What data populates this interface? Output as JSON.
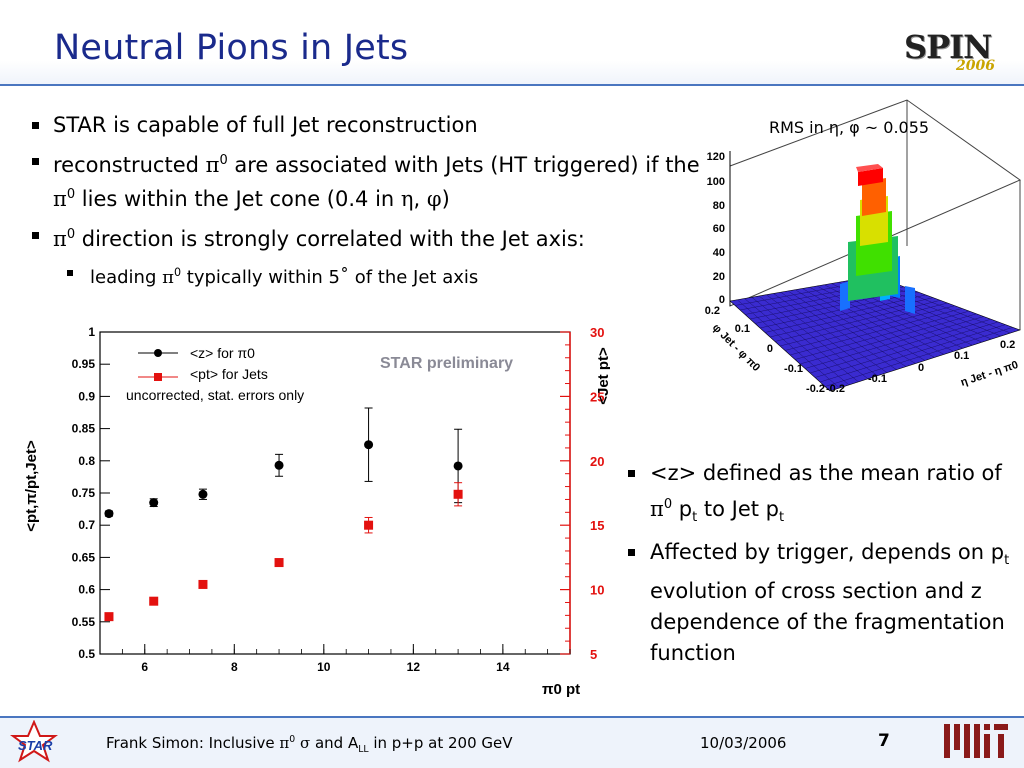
{
  "slide": {
    "title": "Neutral Pions in Jets",
    "logo_main": "SPIN",
    "logo_year": "2006"
  },
  "bullets": {
    "b1": "STAR is capable of full Jet reconstruction",
    "b2_a": "reconstructed ",
    "pi": "π",
    "zero": "0",
    "b2_b": " are associated with Jets (HT triggered) if the ",
    "b2_c": " lies within the Jet cone (0.4 in ",
    "eta": "η",
    "comma": ", ",
    "phi": "φ",
    "close": ")",
    "b3_b": " direction is strongly correlated with the Jet axis:",
    "sub_a": "leading ",
    "sub_b": " typically within 5˚   of the Jet axis"
  },
  "lego": {
    "rms_label": "RMS in η, φ ~ 0.055",
    "zticks": [
      "120",
      "100",
      "80",
      "60",
      "40",
      "20",
      "0"
    ],
    "left_ticks": [
      "0.2",
      "0.1",
      "0",
      "-0.1",
      "-0.2"
    ],
    "right_ticks": [
      "-0.2",
      "-0.1",
      "0",
      "0.1",
      "0.2"
    ],
    "left_axis_label": "φ Jet - φ π0",
    "right_axis_label": "η Jet - η π0"
  },
  "right_bullets": {
    "r1_a": "<z> defined as the mean ratio of ",
    "r1_b": " p",
    "r1_t": "t",
    "r1_c": " to Jet p",
    "r2_a": "Affected by trigger, depends on p",
    "r2_t": "t",
    "r2_b": " evolution of cross section and z dependence of the fragmentation function"
  },
  "chart_data": {
    "type": "scatter",
    "xlabel": "π0 pt",
    "ylabel_left": "<pt,π/pt,Jet>",
    "ylabel_right": "<Jet pt>",
    "xlim": [
      5,
      15.5
    ],
    "ylim_left": [
      0.5,
      1.0
    ],
    "ylim_right": [
      5,
      30
    ],
    "x_ticks": [
      6,
      8,
      10,
      12,
      14
    ],
    "y_ticks_left": [
      "0.5",
      "0.55",
      "0.6",
      "0.65",
      "0.7",
      "0.75",
      "0.8",
      "0.85",
      "0.9",
      "0.95",
      "1"
    ],
    "y_ticks_right": [
      "5",
      "10",
      "15",
      "20",
      "25",
      "30"
    ],
    "watermark": "STAR preliminary",
    "legend": [
      "<z> for π0",
      "<pt> for Jets",
      "uncorrected, stat. errors only"
    ],
    "series": [
      {
        "name": "<z> for π0",
        "color": "#000000",
        "marker": "circle",
        "axis": "left",
        "x": [
          5.2,
          6.2,
          7.3,
          9.0,
          11.0,
          13.0
        ],
        "y": [
          0.718,
          0.735,
          0.748,
          0.793,
          0.825,
          0.792
        ],
        "err": [
          0.004,
          0.006,
          0.008,
          0.017,
          0.057,
          0.057
        ]
      },
      {
        "name": "<pt> for Jets",
        "color": "#e3110f",
        "marker": "square",
        "axis": "right",
        "x": [
          5.2,
          6.2,
          7.3,
          9.0,
          11.0,
          13.0
        ],
        "y": [
          7.9,
          9.1,
          10.4,
          12.1,
          15.0,
          17.4
        ],
        "err": [
          0.1,
          0.1,
          0.15,
          0.2,
          0.6,
          0.9
        ]
      }
    ]
  },
  "footer": {
    "text_a": "Frank Simon: Inclusive ",
    "sigma": "σ",
    "text_b": " and A",
    "ll": "LL",
    "text_c": " in p+p at 200 GeV",
    "date": "10/03/2006",
    "page": "7",
    "star_label": "STAR"
  },
  "colors": {
    "title": "#1a2a8c",
    "accent_line": "#4a76c0",
    "red_axis": "#e3110f"
  }
}
